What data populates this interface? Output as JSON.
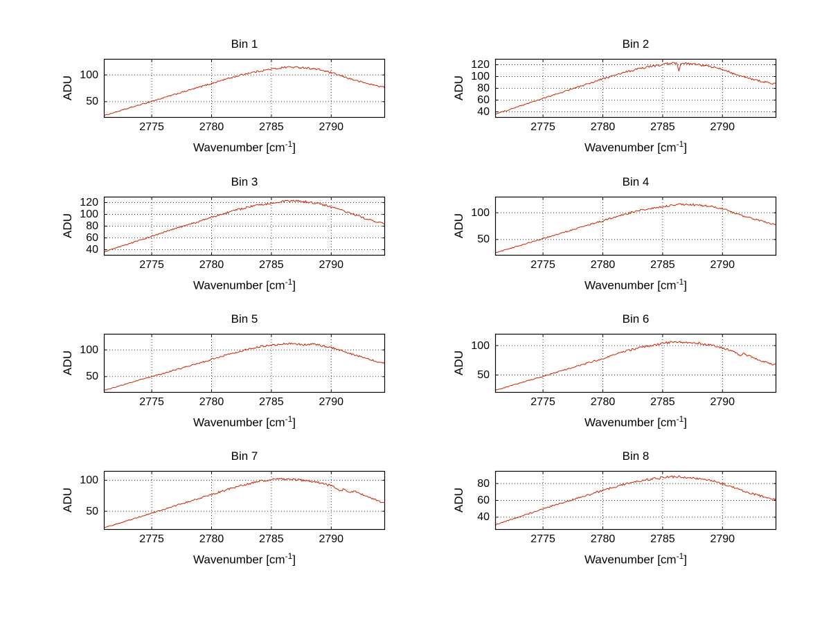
{
  "figure": {
    "background": "#ffffff"
  },
  "chart_data": {
    "type": "line",
    "layout": {
      "rows": 4,
      "cols": 2
    },
    "title": "",
    "xlabel": {
      "pre": "Wavenumber [cm",
      "sup": "-1",
      "post": "]"
    },
    "ylabel": "ADU",
    "line_color": "#cc2200",
    "grid": {
      "style": "dotted",
      "color": "#000000",
      "on": true
    },
    "xlim": [
      2771,
      2794.5
    ],
    "xticks": [
      2775,
      2780,
      2785,
      2790
    ],
    "plots": [
      {
        "title": "Bin 1",
        "ylim": [
          20,
          130
        ],
        "yticks": [
          50,
          100
        ],
        "noise": 1.8,
        "points": [
          [
            2771,
            24
          ],
          [
            2772.5,
            34
          ],
          [
            2774,
            44
          ],
          [
            2775.5,
            54
          ],
          [
            2777,
            64
          ],
          [
            2778.5,
            74
          ],
          [
            2780,
            84
          ],
          [
            2781,
            91
          ],
          [
            2782,
            97
          ],
          [
            2783,
            103
          ],
          [
            2784,
            107
          ],
          [
            2785,
            111
          ],
          [
            2785.5,
            112
          ],
          [
            2786,
            114
          ],
          [
            2786.5,
            115
          ],
          [
            2787,
            114
          ],
          [
            2787.5,
            114
          ],
          [
            2788,
            113
          ],
          [
            2789,
            110
          ],
          [
            2790,
            104
          ],
          [
            2791,
            97
          ],
          [
            2792,
            90
          ],
          [
            2793,
            84
          ],
          [
            2794,
            79
          ],
          [
            2794.5,
            77
          ]
        ]
      },
      {
        "title": "Bin 2",
        "ylim": [
          30,
          130
        ],
        "yticks": [
          40,
          60,
          80,
          100,
          120
        ],
        "noise": 1.8,
        "points": [
          [
            2771,
            36
          ],
          [
            2772.5,
            46
          ],
          [
            2774,
            56
          ],
          [
            2775.5,
            66
          ],
          [
            2777,
            76
          ],
          [
            2778.5,
            86
          ],
          [
            2780,
            96
          ],
          [
            2781,
            102
          ],
          [
            2782,
            108
          ],
          [
            2783,
            113
          ],
          [
            2784,
            117
          ],
          [
            2785,
            120
          ],
          [
            2785.5,
            122
          ],
          [
            2786,
            123
          ],
          [
            2786.2,
            121
          ],
          [
            2786.35,
            108
          ],
          [
            2786.5,
            121
          ],
          [
            2787,
            122
          ],
          [
            2787.5,
            121
          ],
          [
            2788,
            120
          ],
          [
            2789,
            117
          ],
          [
            2790,
            112
          ],
          [
            2790.5,
            109
          ],
          [
            2791,
            104
          ],
          [
            2792,
            98
          ],
          [
            2793,
            93
          ],
          [
            2794,
            89
          ],
          [
            2794.5,
            87
          ]
        ]
      },
      {
        "title": "Bin 3",
        "ylim": [
          30,
          130
        ],
        "yticks": [
          40,
          60,
          80,
          100,
          120
        ],
        "noise": 1.8,
        "points": [
          [
            2771,
            36
          ],
          [
            2772.5,
            46
          ],
          [
            2774,
            56
          ],
          [
            2775.5,
            66
          ],
          [
            2777,
            76
          ],
          [
            2778.5,
            85
          ],
          [
            2780,
            95
          ],
          [
            2781,
            101
          ],
          [
            2782,
            107
          ],
          [
            2783,
            112
          ],
          [
            2784,
            116
          ],
          [
            2785,
            119
          ],
          [
            2785.5,
            121
          ],
          [
            2786,
            122
          ],
          [
            2786.5,
            122
          ],
          [
            2787,
            123
          ],
          [
            2787.5,
            122
          ],
          [
            2788,
            121
          ],
          [
            2789,
            118
          ],
          [
            2790,
            113
          ],
          [
            2791,
            106
          ],
          [
            2792,
            99
          ],
          [
            2793,
            92
          ],
          [
            2794,
            86
          ],
          [
            2794.5,
            84
          ]
        ]
      },
      {
        "title": "Bin 4",
        "ylim": [
          20,
          130
        ],
        "yticks": [
          50,
          100
        ],
        "noise": 1.8,
        "points": [
          [
            2771,
            25
          ],
          [
            2772.5,
            35
          ],
          [
            2774,
            45
          ],
          [
            2775.5,
            55
          ],
          [
            2777,
            65
          ],
          [
            2778.5,
            75
          ],
          [
            2780,
            85
          ],
          [
            2781,
            92
          ],
          [
            2782,
            98
          ],
          [
            2783,
            104
          ],
          [
            2784,
            108
          ],
          [
            2785,
            112
          ],
          [
            2785.5,
            113
          ],
          [
            2786,
            115
          ],
          [
            2786.5,
            116
          ],
          [
            2787,
            115
          ],
          [
            2787.5,
            115
          ],
          [
            2788,
            114
          ],
          [
            2789,
            112
          ],
          [
            2790,
            107
          ],
          [
            2790.5,
            104
          ],
          [
            2791,
            99
          ],
          [
            2792,
            92
          ],
          [
            2793,
            86
          ],
          [
            2794,
            80
          ],
          [
            2794.5,
            78
          ]
        ]
      },
      {
        "title": "Bin 5",
        "ylim": [
          20,
          130
        ],
        "yticks": [
          50,
          100
        ],
        "noise": 1.8,
        "points": [
          [
            2771,
            24
          ],
          [
            2772.5,
            34
          ],
          [
            2774,
            44
          ],
          [
            2775.5,
            53
          ],
          [
            2777,
            63
          ],
          [
            2778.5,
            72
          ],
          [
            2780,
            82
          ],
          [
            2781,
            89
          ],
          [
            2782,
            95
          ],
          [
            2783,
            101
          ],
          [
            2784,
            106
          ],
          [
            2785,
            109
          ],
          [
            2785.5,
            110
          ],
          [
            2786,
            111
          ],
          [
            2786.5,
            112
          ],
          [
            2787,
            111
          ],
          [
            2787.5,
            110
          ],
          [
            2788,
            110
          ],
          [
            2788.5,
            111
          ],
          [
            2789,
            109
          ],
          [
            2790,
            104
          ],
          [
            2791,
            98
          ],
          [
            2792,
            90
          ],
          [
            2793,
            84
          ],
          [
            2794,
            77
          ],
          [
            2794.5,
            75
          ]
        ]
      },
      {
        "title": "Bin 6",
        "ylim": [
          20,
          120
        ],
        "yticks": [
          50,
          100
        ],
        "noise": 1.8,
        "points": [
          [
            2771,
            24
          ],
          [
            2772.5,
            33
          ],
          [
            2774,
            42
          ],
          [
            2775.5,
            51
          ],
          [
            2777,
            60
          ],
          [
            2778.5,
            69
          ],
          [
            2780,
            78
          ],
          [
            2781,
            85
          ],
          [
            2782,
            91
          ],
          [
            2783,
            96
          ],
          [
            2784,
            100
          ],
          [
            2785,
            104
          ],
          [
            2785.5,
            105
          ],
          [
            2786,
            106
          ],
          [
            2786.5,
            106
          ],
          [
            2787,
            105
          ],
          [
            2787.5,
            105
          ],
          [
            2788,
            104
          ],
          [
            2789,
            101
          ],
          [
            2790,
            96
          ],
          [
            2791,
            90
          ],
          [
            2791.4,
            83
          ],
          [
            2791.8,
            86
          ],
          [
            2792,
            84
          ],
          [
            2793,
            76
          ],
          [
            2794,
            69
          ],
          [
            2794.5,
            67
          ]
        ]
      },
      {
        "title": "Bin 7",
        "ylim": [
          20,
          115
        ],
        "yticks": [
          50,
          100
        ],
        "noise": 1.7,
        "points": [
          [
            2771,
            23
          ],
          [
            2772.5,
            32
          ],
          [
            2774,
            41
          ],
          [
            2775.5,
            50
          ],
          [
            2777,
            59
          ],
          [
            2778.5,
            68
          ],
          [
            2780,
            77
          ],
          [
            2781,
            83
          ],
          [
            2782,
            89
          ],
          [
            2783,
            94
          ],
          [
            2784,
            98
          ],
          [
            2785,
            101
          ],
          [
            2785.5,
            102
          ],
          [
            2786,
            102
          ],
          [
            2786.5,
            101
          ],
          [
            2787,
            101
          ],
          [
            2787.5,
            100
          ],
          [
            2788,
            99
          ],
          [
            2789,
            96
          ],
          [
            2790,
            91
          ],
          [
            2790.5,
            87
          ],
          [
            2790.8,
            82
          ],
          [
            2791,
            86
          ],
          [
            2791.5,
            80
          ],
          [
            2792,
            82
          ],
          [
            2793,
            74
          ],
          [
            2794,
            66
          ],
          [
            2794.5,
            63
          ]
        ]
      },
      {
        "title": "Bin 8",
        "ylim": [
          25,
          95
        ],
        "yticks": [
          40,
          60,
          80
        ],
        "noise": 1.4,
        "points": [
          [
            2771,
            31
          ],
          [
            2772.5,
            38
          ],
          [
            2774,
            45
          ],
          [
            2775.5,
            52
          ],
          [
            2777,
            59
          ],
          [
            2778.5,
            65
          ],
          [
            2780,
            72
          ],
          [
            2781,
            76
          ],
          [
            2782,
            80
          ],
          [
            2783,
            83
          ],
          [
            2784,
            85
          ],
          [
            2785,
            87
          ],
          [
            2785.5,
            88
          ],
          [
            2786,
            88
          ],
          [
            2786.5,
            88
          ],
          [
            2787,
            87
          ],
          [
            2787.5,
            87
          ],
          [
            2788,
            86
          ],
          [
            2789,
            84
          ],
          [
            2790,
            80
          ],
          [
            2791,
            75
          ],
          [
            2792,
            70
          ],
          [
            2793,
            66
          ],
          [
            2794,
            62
          ],
          [
            2794.5,
            61
          ]
        ]
      }
    ]
  }
}
